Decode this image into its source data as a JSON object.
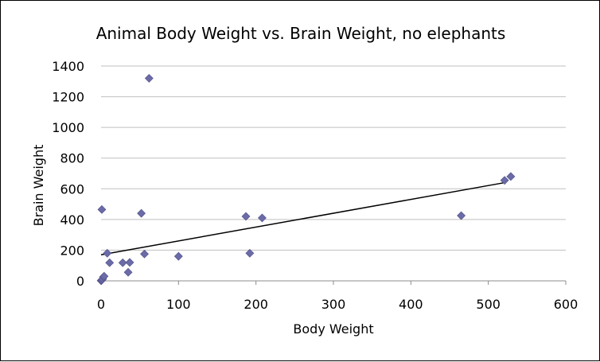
{
  "chart_data": {
    "type": "scatter",
    "title": "Animal Body Weight vs. Brain Weight, no elephants",
    "xlabel": "Body Weight",
    "ylabel": "Brain Weight",
    "xlim": [
      0,
      600
    ],
    "ylim": [
      0,
      1400
    ],
    "xticks": [
      "0",
      "100",
      "200",
      "300",
      "400",
      "500",
      "600"
    ],
    "yticks": [
      "0",
      "200",
      "400",
      "600",
      "800",
      "1000",
      "1200",
      "1400"
    ],
    "grid": true,
    "legend": "none",
    "marker_color": "#6B6BA8",
    "points": [
      {
        "x": 0.1,
        "y": 1
      },
      {
        "x": 0.5,
        "y": 3
      },
      {
        "x": 1,
        "y": 6
      },
      {
        "x": 2,
        "y": 12
      },
      {
        "x": 3,
        "y": 25
      },
      {
        "x": 4,
        "y": 30
      },
      {
        "x": 1,
        "y": 465
      },
      {
        "x": 8,
        "y": 180
      },
      {
        "x": 11,
        "y": 118
      },
      {
        "x": 28,
        "y": 118
      },
      {
        "x": 35,
        "y": 56
      },
      {
        "x": 37,
        "y": 120
      },
      {
        "x": 52,
        "y": 440
      },
      {
        "x": 56,
        "y": 175
      },
      {
        "x": 62,
        "y": 1320
      },
      {
        "x": 100,
        "y": 160
      },
      {
        "x": 187,
        "y": 420
      },
      {
        "x": 192,
        "y": 180
      },
      {
        "x": 208,
        "y": 410
      },
      {
        "x": 465,
        "y": 425
      },
      {
        "x": 521,
        "y": 655
      },
      {
        "x": 529,
        "y": 680
      }
    ],
    "trendline": {
      "x": [
        0,
        521
      ],
      "y": [
        170,
        640
      ],
      "color": "#000000"
    }
  }
}
